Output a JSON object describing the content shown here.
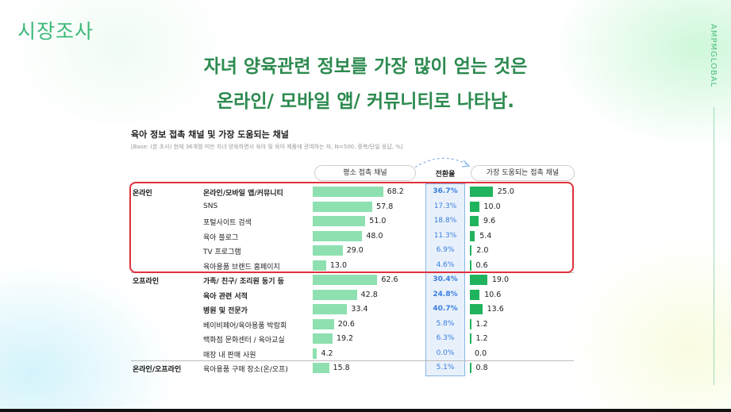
{
  "section_label": "시장조사",
  "brand": "AMPMGLOBAL",
  "headline": {
    "line1": "자녀 양육관련 정보를 가장 많이 얻는 것은",
    "line2": "온라인/ 모바일 앱/ 커뮤니티로 나타남."
  },
  "chart_data": {
    "type": "bar",
    "title": "육아 정보 접촉 채널 및 가장 도움되는 채널",
    "base_note": "[Base: (본 조사) 현재 36개월 미만 자녀 양육하면서 육아 및 육아 제품에 관여하는 자, N=500, 중복/단일 응답, %]",
    "column_headers": {
      "left": "평소 접촉 채널",
      "middle": "전환율",
      "right": "가장 도움되는 접촉 채널"
    },
    "colors": {
      "left_bar": "#8ee0b0",
      "right_bar": "#20b35e",
      "conversion_text": "#3a7de0",
      "highlight": "#e0313b"
    },
    "categories": [
      "온라인/모바일 앱/커뮤니티",
      "SNS",
      "포털사이트 검색",
      "육아 블로그",
      "TV 프로그램",
      "육아용품 브랜드 홈페이지",
      "가족/ 친구/ 조리원 동기 등",
      "육아 관련 서적",
      "병원 및 전문가",
      "베이비페어/육아용품 박람회",
      "백화점 문화센터 / 육아교실",
      "매장 내 판매 사원",
      "육아용품 구매 장소(온/오프)"
    ],
    "rows": [
      {
        "group": "온라인",
        "item": "온라인/모바일 앱/커뮤니티",
        "bold": true,
        "left": 68.2,
        "left_label": "68.2",
        "conv": "36.7%",
        "conv_bold": true,
        "right": 25.0,
        "right_label": "25.0"
      },
      {
        "group": "",
        "item": "SNS",
        "bold": false,
        "left": 57.8,
        "left_label": "57.8",
        "conv": "17.3%",
        "conv_bold": false,
        "right": 10.0,
        "right_label": "10.0"
      },
      {
        "group": "",
        "item": "포털사이트 검색",
        "bold": false,
        "left": 51.0,
        "left_label": "51.0",
        "conv": "18.8%",
        "conv_bold": false,
        "right": 9.6,
        "right_label": "9.6"
      },
      {
        "group": "",
        "item": "육아 블로그",
        "bold": false,
        "left": 48.0,
        "left_label": "48.0",
        "conv": "11.3%",
        "conv_bold": false,
        "right": 5.4,
        "right_label": "5.4"
      },
      {
        "group": "",
        "item": "TV 프로그램",
        "bold": false,
        "left": 29.0,
        "left_label": "29.0",
        "conv": "6.9%",
        "conv_bold": false,
        "right": 2.0,
        "right_label": "2.0"
      },
      {
        "group": "",
        "item": "육아용품 브랜드 홈페이지",
        "bold": false,
        "left": 13.0,
        "left_label": "13.0",
        "conv": "4.6%",
        "conv_bold": false,
        "right": 0.6,
        "right_label": "0.6"
      },
      {
        "group": "오프라인",
        "item": "가족/ 친구/ 조리원 동기 등",
        "bold": true,
        "left": 62.6,
        "left_label": "62.6",
        "conv": "30.4%",
        "conv_bold": true,
        "right": 19.0,
        "right_label": "19.0"
      },
      {
        "group": "",
        "item": "육아 관련 서적",
        "bold": true,
        "left": 42.8,
        "left_label": "42.8",
        "conv": "24.8%",
        "conv_bold": true,
        "right": 10.6,
        "right_label": "10.6"
      },
      {
        "group": "",
        "item": "병원 및 전문가",
        "bold": true,
        "left": 33.4,
        "left_label": "33.4",
        "conv": "40.7%",
        "conv_bold": true,
        "right": 13.6,
        "right_label": "13.6"
      },
      {
        "group": "",
        "item": "베이비페어/육아용품 박람회",
        "bold": false,
        "left": 20.6,
        "left_label": "20.6",
        "conv": "5.8%",
        "conv_bold": false,
        "right": 1.2,
        "right_label": "1.2"
      },
      {
        "group": "",
        "item": "백화점 문화센터 / 육아교실",
        "bold": false,
        "left": 19.2,
        "left_label": "19.2",
        "conv": "6.3%",
        "conv_bold": false,
        "right": 1.2,
        "right_label": "1.2"
      },
      {
        "group": "",
        "item": "매장 내 판매 사원",
        "bold": false,
        "left": 4.2,
        "left_label": "4.2",
        "conv": "0.0%",
        "conv_bold": false,
        "right": 0.0,
        "right_label": "0.0"
      },
      {
        "group": "온라인/오프라인",
        "item": "육아용품 구매 장소(온/오프)",
        "bold": false,
        "left": 15.8,
        "left_label": "15.8",
        "conv": "5.1%",
        "conv_bold": false,
        "right": 0.8,
        "right_label": "0.8"
      }
    ]
  }
}
